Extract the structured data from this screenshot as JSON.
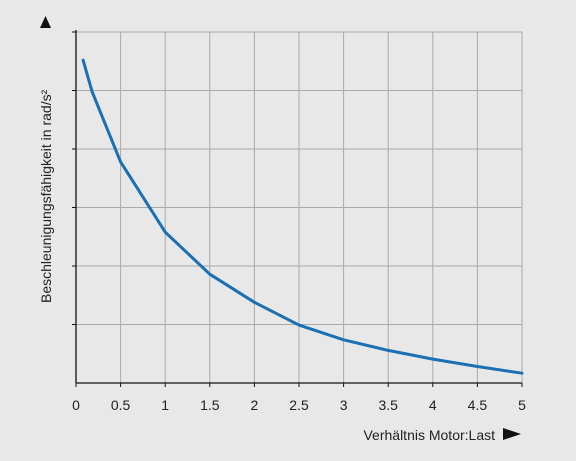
{
  "chart_data": {
    "type": "line",
    "title": "",
    "xlabel": "Verhältnis Motor:Last",
    "ylabel": "Beschleunigungsfähigkeit in rad/s²",
    "xlim": [
      0,
      5
    ],
    "x_ticks": [
      "0",
      "0.5",
      "1",
      "1.5",
      "2",
      "2.5",
      "3",
      "3.5",
      "4",
      "4.5",
      "5"
    ],
    "y_unlabeled_gridlines": 6,
    "grid": true,
    "series": [
      {
        "color": "#1a6fb5",
        "x": [
          0.08,
          0.18,
          0.5,
          1.0,
          1.5,
          2.0,
          2.5,
          3.0,
          3.5,
          4.0,
          4.5,
          5.0
        ],
        "y": [
          0.92,
          0.83,
          0.63,
          0.43,
          0.31,
          0.23,
          0.165,
          0.123,
          0.093,
          0.068,
          0.047,
          0.028
        ]
      }
    ]
  }
}
